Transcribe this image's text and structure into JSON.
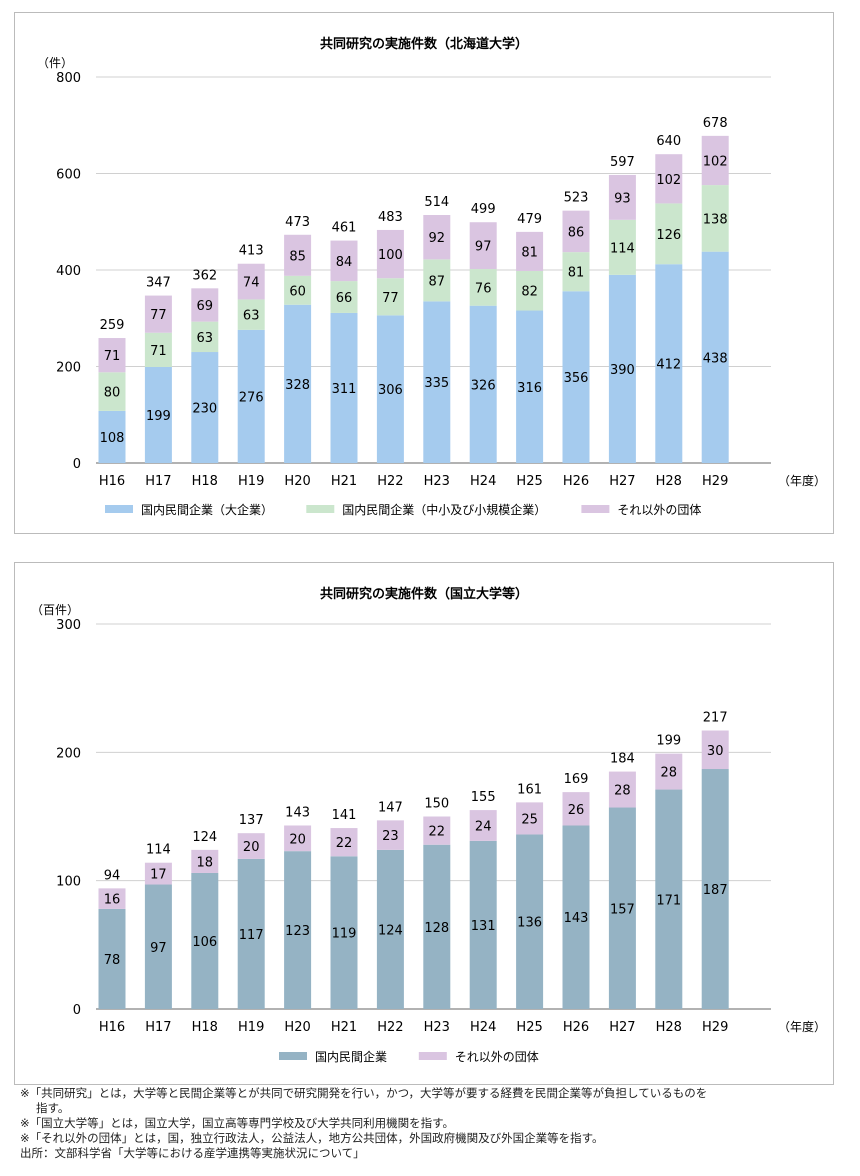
{
  "chart_data": [
    {
      "type": "bar",
      "stacked": true,
      "title": "共同研究の実施件数（北海道大学）",
      "ylabel": "（件）",
      "xlabel": "（年度）",
      "ylim": [
        0,
        800
      ],
      "yticks": [
        0,
        200,
        400,
        600,
        800
      ],
      "categories": [
        "H16",
        "H17",
        "H18",
        "H19",
        "H20",
        "H21",
        "H22",
        "H23",
        "H24",
        "H25",
        "H26",
        "H27",
        "H28",
        "H29"
      ],
      "series": [
        {
          "name": "国内民間企業（大企業）",
          "color": "#a5cbee",
          "values": [
            108,
            199,
            230,
            276,
            328,
            311,
            306,
            335,
            326,
            316,
            356,
            390,
            412,
            438
          ]
        },
        {
          "name": "国内民間企業（中小及び小規模企業）",
          "color": "#cbe6cd",
          "values": [
            80,
            71,
            63,
            63,
            60,
            66,
            77,
            87,
            76,
            82,
            81,
            114,
            126,
            138
          ]
        },
        {
          "name": "それ以外の団体",
          "color": "#dac5e1",
          "values": [
            71,
            77,
            69,
            74,
            85,
            84,
            100,
            92,
            97,
            81,
            86,
            93,
            102,
            102
          ]
        }
      ],
      "totals": [
        259,
        347,
        362,
        413,
        473,
        461,
        483,
        514,
        499,
        479,
        523,
        597,
        640,
        678
      ],
      "legend": "bottom"
    },
    {
      "type": "bar",
      "stacked": true,
      "title": "共同研究の実施件数（国立大学等）",
      "ylabel": "（百件）",
      "xlabel": "（年度）",
      "ylim": [
        0,
        300
      ],
      "yticks": [
        0,
        100,
        200,
        300
      ],
      "categories": [
        "H16",
        "H17",
        "H18",
        "H19",
        "H20",
        "H21",
        "H22",
        "H23",
        "H24",
        "H25",
        "H26",
        "H27",
        "H28",
        "H29"
      ],
      "series": [
        {
          "name": "国内民間企業",
          "color": "#95b3c4",
          "values": [
            78,
            97,
            106,
            117,
            123,
            119,
            124,
            128,
            131,
            136,
            143,
            157,
            171,
            187
          ]
        },
        {
          "name": "それ以外の団体",
          "color": "#dac5e1",
          "values": [
            16,
            17,
            18,
            20,
            20,
            22,
            23,
            22,
            24,
            25,
            26,
            28,
            28,
            30
          ]
        }
      ],
      "totals": [
        94,
        114,
        124,
        137,
        143,
        141,
        147,
        150,
        155,
        161,
        169,
        184,
        199,
        217
      ],
      "legend": "bottom"
    }
  ],
  "notes": [
    "※「共同研究」とは，大学等と民間企業等とが共同で研究開発を行い，かつ，大学等が要する経費を民間企業等が負担しているものを",
    "指す。",
    "※「国立大学等」とは，国立大学，国立高等専門学校及び大学共同利用機関を指す。",
    "※「それ以外の団体」とは，国，独立行政法人，公益法人，地方公共団体，外国政府機関及び外国企業等を指す。",
    "出所：文部科学省「大学等における産学連携等実施状況について」"
  ]
}
